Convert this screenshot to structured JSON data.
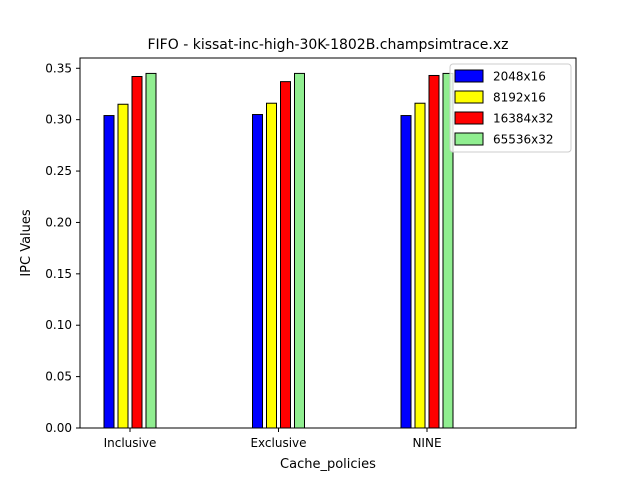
{
  "chart_data": {
    "type": "bar",
    "title": "FIFO - kissat-inc-high-30K-1802B.champsimtrace.xz",
    "xlabel": "Cache_policies",
    "ylabel": "IPC Values",
    "categories": [
      "Inclusive",
      "Exclusive",
      "NINE"
    ],
    "ylim": [
      0,
      0.36
    ],
    "yticks": [
      "0.00",
      "0.05",
      "0.10",
      "0.15",
      "0.20",
      "0.25",
      "0.30",
      "0.35"
    ],
    "grid": false,
    "legend_position": "top-right",
    "series": [
      {
        "name": "2048x16",
        "color": "#0000ff",
        "values": [
          0.304,
          0.305,
          0.304
        ]
      },
      {
        "name": "8192x16",
        "color": "#ffff00",
        "values": [
          0.315,
          0.316,
          0.316
        ]
      },
      {
        "name": "16384x32",
        "color": "#ff0000",
        "values": [
          0.342,
          0.337,
          0.343
        ]
      },
      {
        "name": "65536x32",
        "color": "#90ee90",
        "values": [
          0.345,
          0.345,
          0.345
        ]
      }
    ]
  }
}
